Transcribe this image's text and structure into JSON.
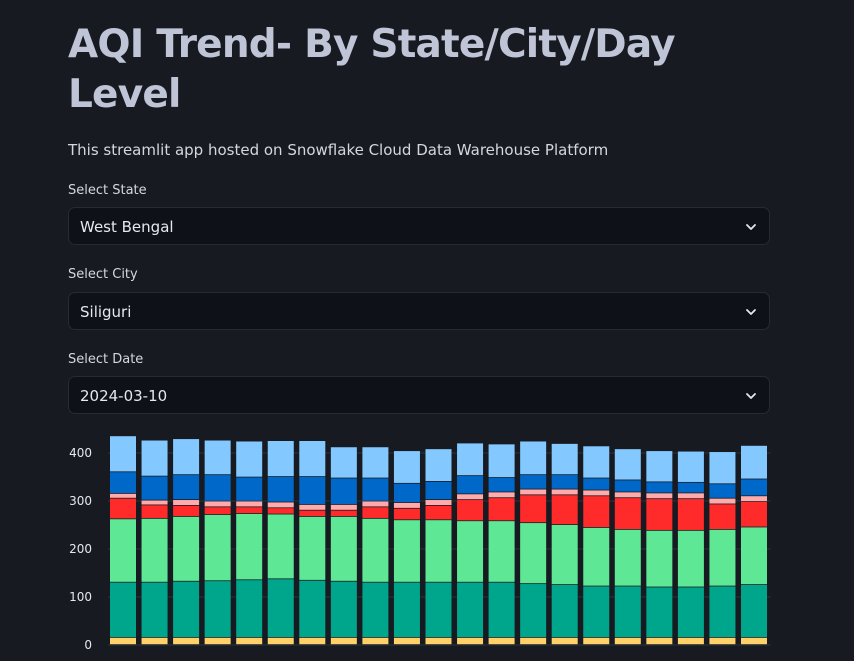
{
  "page": {
    "title": "AQI Trend- By State/City/Day Level",
    "subtitle": "This streamlit app hosted on Snowflake Cloud Data Warehouse Platform"
  },
  "filters": {
    "state": {
      "label": "Select State",
      "value": "West Bengal",
      "icon": "chevron-down-icon"
    },
    "city": {
      "label": "Select City",
      "value": "Siliguri",
      "icon": "chevron-down-icon"
    },
    "date": {
      "label": "Select Date",
      "value": "2024-03-10",
      "icon": "chevron-down-icon"
    }
  },
  "chart_data": {
    "type": "bar",
    "stacked": true,
    "grid": true,
    "legend": "none",
    "yticks": [
      0,
      100,
      200,
      300,
      400
    ],
    "ylim": [
      0,
      440
    ],
    "series": [
      {
        "color": "#ffd16a",
        "values": [
          15,
          15,
          15,
          15,
          15,
          15,
          15,
          15,
          15,
          15,
          15,
          15,
          15,
          15,
          15,
          15,
          15,
          15,
          15,
          15,
          15,
          15
        ]
      },
      {
        "color": "#00a68c",
        "values": [
          115,
          115,
          117,
          118,
          120,
          122,
          119,
          117,
          115,
          115,
          115,
          115,
          115,
          112,
          110,
          107,
          107,
          105,
          105,
          107,
          110,
          110
        ]
      },
      {
        "color": "#5ee896",
        "values": [
          132,
          133,
          135,
          138,
          138,
          135,
          133,
          135,
          133,
          130,
          130,
          128,
          128,
          127,
          125,
          122,
          118,
          118,
          118,
          118,
          120,
          125
        ]
      },
      {
        "color": "#ff2b2b",
        "values": [
          43,
          28,
          23,
          16,
          14,
          13,
          13,
          13,
          24,
          24,
          30,
          44,
          48,
          58,
          62,
          66,
          66,
          66,
          66,
          53,
          53,
          50
        ]
      },
      {
        "color": "#ffabab",
        "values": [
          10,
          10,
          12,
          12,
          12,
          12,
          12,
          12,
          12,
          12,
          12,
          12,
          12,
          12,
          12,
          12,
          12,
          12,
          12,
          12,
          12,
          12
        ]
      },
      {
        "color": "#0068c9",
        "values": [
          45,
          50,
          52,
          55,
          50,
          53,
          58,
          55,
          48,
          40,
          38,
          38,
          30,
          30,
          30,
          25,
          25,
          23,
          22,
          30,
          35,
          30
        ]
      },
      {
        "color": "#83c9ff",
        "values": [
          75,
          75,
          75,
          72,
          75,
          75,
          75,
          65,
          65,
          68,
          68,
          68,
          70,
          70,
          65,
          67,
          65,
          65,
          65,
          67,
          70,
          77
        ]
      }
    ]
  }
}
